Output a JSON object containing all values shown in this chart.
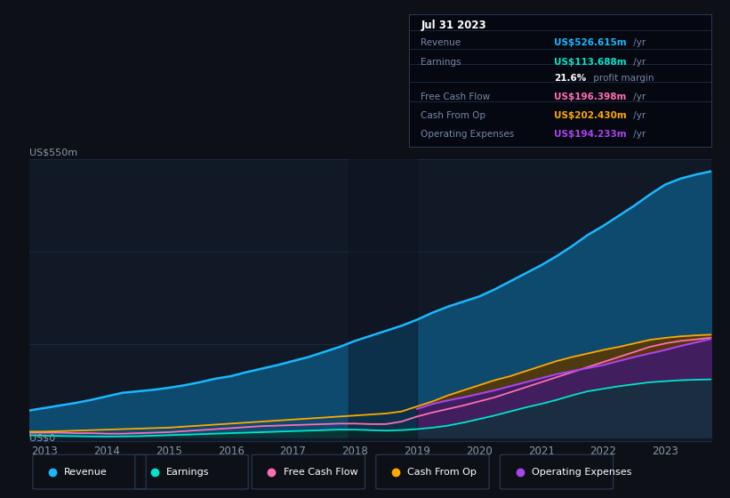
{
  "bg_color": "#0d1117",
  "plot_bg": "#111927",
  "grid_color": "#1e3050",
  "text_color": "#8899aa",
  "years": [
    2012.75,
    2013.0,
    2013.25,
    2013.5,
    2013.75,
    2014.0,
    2014.25,
    2014.5,
    2014.75,
    2015.0,
    2015.25,
    2015.5,
    2015.75,
    2016.0,
    2016.25,
    2016.5,
    2016.75,
    2017.0,
    2017.25,
    2017.5,
    2017.75,
    2018.0,
    2018.25,
    2018.5,
    2018.75,
    2019.0,
    2019.25,
    2019.5,
    2019.75,
    2020.0,
    2020.25,
    2020.5,
    2020.75,
    2021.0,
    2021.25,
    2021.5,
    2021.75,
    2022.0,
    2022.25,
    2022.5,
    2022.75,
    2023.0,
    2023.25,
    2023.5,
    2023.75
  ],
  "revenue": [
    52,
    57,
    62,
    67,
    73,
    80,
    87,
    90,
    93,
    97,
    102,
    108,
    115,
    120,
    128,
    135,
    142,
    150,
    158,
    168,
    178,
    190,
    200,
    210,
    220,
    232,
    246,
    258,
    268,
    278,
    292,
    308,
    324,
    340,
    358,
    378,
    400,
    418,
    438,
    458,
    480,
    500,
    512,
    520,
    526.6
  ],
  "earnings": [
    3,
    2,
    1.5,
    1,
    0.5,
    0.2,
    0.5,
    1,
    2,
    3,
    4,
    5,
    6,
    7,
    8,
    9,
    10,
    11,
    12,
    13,
    14,
    14,
    13,
    12,
    13,
    15,
    18,
    22,
    28,
    35,
    42,
    50,
    58,
    65,
    73,
    82,
    90,
    95,
    100,
    104,
    108,
    110,
    112,
    113,
    113.7
  ],
  "free_cash_flow": [
    8,
    8,
    8,
    7,
    7,
    6,
    6,
    7,
    8,
    9,
    11,
    13,
    15,
    17,
    19,
    21,
    22,
    23,
    24,
    25,
    26,
    26,
    25,
    25,
    30,
    40,
    48,
    55,
    62,
    70,
    78,
    88,
    98,
    108,
    118,
    128,
    138,
    148,
    158,
    168,
    178,
    185,
    190,
    193,
    196.4
  ],
  "cash_from_op": [
    10,
    10,
    11,
    12,
    13,
    14,
    15,
    16,
    17,
    18,
    20,
    22,
    24,
    26,
    28,
    30,
    32,
    34,
    36,
    38,
    40,
    42,
    44,
    46,
    50,
    60,
    70,
    82,
    92,
    102,
    112,
    120,
    130,
    140,
    150,
    158,
    165,
    172,
    178,
    185,
    192,
    196,
    199,
    201,
    202.4
  ],
  "operating_expenses": [
    null,
    null,
    null,
    null,
    null,
    null,
    null,
    null,
    null,
    null,
    null,
    null,
    null,
    null,
    null,
    null,
    null,
    null,
    null,
    null,
    null,
    null,
    null,
    null,
    null,
    55,
    65,
    72,
    78,
    85,
    92,
    100,
    108,
    116,
    124,
    130,
    136,
    142,
    150,
    158,
    165,
    172,
    180,
    187,
    194.2
  ],
  "revenue_line_color": "#1ab8ff",
  "revenue_fill_color": "#0d4a6e",
  "earnings_line_color": "#00e5cc",
  "earnings_fill_color": "#0a3535",
  "fcf_line_color": "#ff6eb4",
  "fcf_fill_color": "#5a2040",
  "cashop_line_color": "#ffaa00",
  "cashop_fill_color": "#5a3800",
  "opex_line_color": "#aa44ee",
  "opex_fill_color": "#3d1a6e",
  "ylim_top": 550,
  "ylim_bottom": -8,
  "y_label_top": "US$550m",
  "y_label_bottom": "US$0",
  "xtick_years": [
    2013,
    2014,
    2015,
    2016,
    2017,
    2018,
    2019,
    2020,
    2021,
    2022,
    2023
  ],
  "tooltip_title": "Jul 31 2023",
  "tooltip_rows": [
    {
      "label": "Revenue",
      "value": "US$526.615m",
      "suffix": " /yr",
      "color": "#1ab8ff"
    },
    {
      "label": "Earnings",
      "value": "US$113.688m",
      "suffix": " /yr",
      "color": "#00e5cc"
    },
    {
      "label": "",
      "value": "21.6%",
      "suffix": " profit margin",
      "color": "#ffffff"
    },
    {
      "label": "Free Cash Flow",
      "value": "US$196.398m",
      "suffix": " /yr",
      "color": "#ff6eb4"
    },
    {
      "label": "Cash From Op",
      "value": "US$202.430m",
      "suffix": " /yr",
      "color": "#ffaa00"
    },
    {
      "label": "Operating Expenses",
      "value": "US$194.233m",
      "suffix": " /yr",
      "color": "#aa44ee"
    }
  ],
  "legend_items": [
    {
      "label": "Revenue",
      "color": "#1ab8ff"
    },
    {
      "label": "Earnings",
      "color": "#00e5cc"
    },
    {
      "label": "Free Cash Flow",
      "color": "#ff6eb4"
    },
    {
      "label": "Cash From Op",
      "color": "#ffaa00"
    },
    {
      "label": "Operating Expenses",
      "color": "#aa44ee"
    }
  ]
}
